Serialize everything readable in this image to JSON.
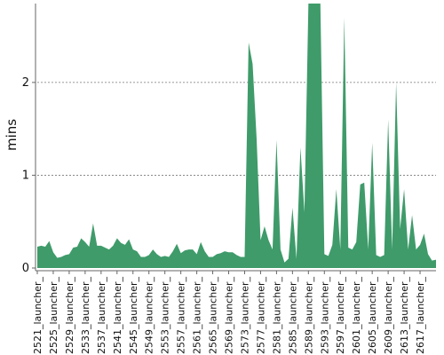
{
  "chart_data": {
    "type": "area",
    "title": "",
    "xlabel": "",
    "ylabel": "mins",
    "ylim": [
      0,
      2.85
    ],
    "yticks": [
      0,
      1,
      2
    ],
    "grid": "horizontal-dashed",
    "legend": "none",
    "colors": {
      "area": "#3f9b6a",
      "grid": "#777777",
      "axis": "#666666",
      "text": "#111111"
    },
    "x_tick_labels": [
      "#2521_launcher_",
      "#2525_launcher_",
      "#2529_launcher_",
      "#2533_launcher_",
      "#2537_launcher_",
      "#2541_launcher_",
      "#2545_launcher_",
      "#2549_launcher_",
      "#2553_launcher_",
      "#2557_launcher_",
      "#2561_launcher_",
      "#2565_launcher_",
      "#2569_launcher_",
      "#2573_launcher_",
      "#2577_launcher_",
      "#2581_launcher_",
      "#2585_launcher_",
      "#2589_launcher_",
      "#2593_launcher_",
      "#2597_launcher_",
      "#2601_launcher_",
      "#2605_launcher_",
      "#2609_launcher_",
      "#2613_launcher_",
      "#2617_launcher_"
    ],
    "series": [
      {
        "values": [
          0.23,
          0.24,
          0.23,
          0.29,
          0.17,
          0.11,
          0.12,
          0.14,
          0.15,
          0.22,
          0.23,
          0.32,
          0.28,
          0.23,
          0.48,
          0.24,
          0.24,
          0.22,
          0.2,
          0.24,
          0.32,
          0.27,
          0.25,
          0.31,
          0.2,
          0.18,
          0.12,
          0.12,
          0.14,
          0.2,
          0.15,
          0.12,
          0.13,
          0.12,
          0.18,
          0.26,
          0.16,
          0.19,
          0.2,
          0.2,
          0.15,
          0.28,
          0.18,
          0.12,
          0.12,
          0.15,
          0.16,
          0.18,
          0.17,
          0.17,
          0.14,
          0.12,
          0.12,
          2.43,
          2.2,
          1.4,
          0.3,
          0.45,
          0.3,
          0.2,
          1.38,
          0.2,
          0.06,
          0.1,
          0.65,
          0.1,
          1.3,
          0.6,
          2.9,
          2.9,
          2.9,
          2.9,
          0.15,
          0.13,
          0.25,
          0.85,
          0.2,
          2.7,
          0.22,
          0.2,
          0.28,
          0.9,
          0.92,
          0.2,
          1.35,
          0.14,
          0.12,
          0.14,
          1.6,
          0.2,
          2.0,
          0.42,
          0.85,
          0.2,
          0.57,
          0.2,
          0.25,
          0.37,
          0.15,
          0.08,
          0.09
        ]
      }
    ]
  }
}
